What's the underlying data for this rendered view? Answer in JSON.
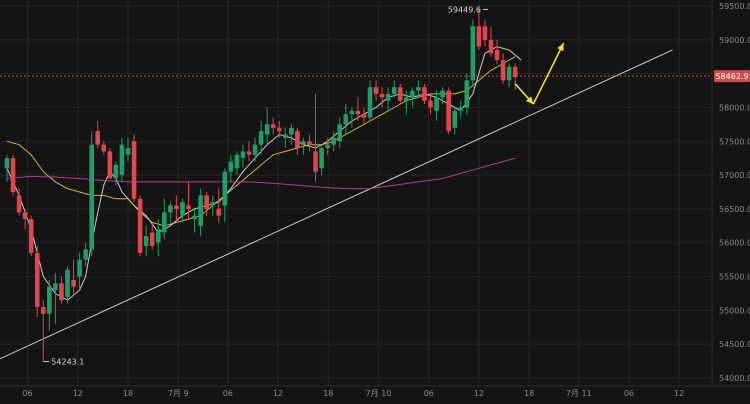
{
  "chart_data": {
    "type": "candlestick",
    "title": "",
    "xlabel": "",
    "ylabel": "",
    "ylim": [
      54000,
      59500
    ],
    "y_ticks": [
      54000.0,
      54500.0,
      55000.0,
      55500.0,
      56000.0,
      56500.0,
      57000.0,
      57500.0,
      58000.0,
      58500.0,
      59000.0,
      59500.0
    ],
    "y_tick_labels": [
      "54000.0",
      "54500.0",
      "55000.0",
      "55500.0",
      "56000.0",
      "56500.0",
      "57000.0",
      "57500.0",
      "58000.0",
      "58500.0",
      "59000.0",
      "59500.0"
    ],
    "x_tick_labels": [
      {
        "label": "06",
        "bar": 3.4
      },
      {
        "label": "12",
        "bar": 11.7
      },
      {
        "label": "18",
        "bar": 20.0
      },
      {
        "label": "7月 9",
        "bar": 28.3
      },
      {
        "label": "06",
        "bar": 36.5
      },
      {
        "label": "12",
        "bar": 44.8
      },
      {
        "label": "18",
        "bar": 53.1
      },
      {
        "label": "7月 10",
        "bar": 61.4
      },
      {
        "label": "06",
        "bar": 69.7
      },
      {
        "label": "12",
        "bar": 78.0
      },
      {
        "label": "18",
        "bar": 86.3
      },
      {
        "label": "7月 11",
        "bar": 94.5
      },
      {
        "label": "06",
        "bar": 102.8
      },
      {
        "label": "12",
        "bar": 111.1
      }
    ],
    "candles": [
      [
        57100,
        57300,
        56900,
        57250
      ],
      [
        57250,
        57300,
        56700,
        56750
      ],
      [
        56700,
        56800,
        56400,
        56450
      ],
      [
        56450,
        56500,
        56200,
        56350
      ],
      [
        56350,
        56400,
        55800,
        55850
      ],
      [
        55850,
        55950,
        54900,
        55050
      ],
      [
        55050,
        55150,
        54243.1,
        54950
      ],
      [
        54950,
        55450,
        54700,
        55350
      ],
      [
        55300,
        55550,
        54800,
        55400
      ],
      [
        55400,
        55500,
        55100,
        55150
      ],
      [
        55200,
        55650,
        55100,
        55600
      ],
      [
        55450,
        55750,
        55250,
        55350
      ],
      [
        55500,
        55850,
        55300,
        55750
      ],
      [
        55750,
        56000,
        55650,
        55900
      ],
      [
        55900,
        57650,
        55800,
        57450
      ],
      [
        57650,
        57800,
        57400,
        57450
      ],
      [
        57450,
        57500,
        57300,
        57350
      ],
      [
        57350,
        57400,
        56950,
        56950
      ],
      [
        56950,
        57200,
        56850,
        57150
      ],
      [
        57000,
        57550,
        56900,
        57450
      ],
      [
        57300,
        57550,
        57200,
        57400
      ],
      [
        57500,
        57600,
        56600,
        56650
      ],
      [
        56650,
        56700,
        55800,
        55850
      ],
      [
        55950,
        56250,
        55800,
        56100
      ],
      [
        56150,
        56300,
        55900,
        55950
      ],
      [
        56000,
        56350,
        55800,
        56200
      ],
      [
        56150,
        56650,
        56050,
        56450
      ],
      [
        56450,
        56600,
        56300,
        56550
      ],
      [
        56550,
        56700,
        56300,
        56500
      ],
      [
        56400,
        56650,
        56300,
        56600
      ],
      [
        56550,
        56900,
        56350,
        56500
      ],
      [
        56350,
        56500,
        56150,
        56400
      ],
      [
        56250,
        56800,
        56100,
        56700
      ],
      [
        56700,
        56750,
        56400,
        56500
      ],
      [
        56550,
        56700,
        56400,
        56600
      ],
      [
        56500,
        56800,
        56300,
        56400
      ],
      [
        56550,
        57100,
        56300,
        57050
      ],
      [
        57050,
        57300,
        56900,
        57200
      ],
      [
        57100,
        57350,
        57000,
        57300
      ],
      [
        57250,
        57450,
        57100,
        57350
      ],
      [
        57350,
        57500,
        57200,
        57300
      ],
      [
        57300,
        57550,
        57200,
        57450
      ],
      [
        57450,
        57800,
        57300,
        57650
      ],
      [
        57600,
        58000,
        57450,
        57750
      ],
      [
        57750,
        57850,
        57600,
        57700
      ],
      [
        57700,
        57800,
        57550,
        57650
      ],
      [
        57550,
        57700,
        57400,
        57600
      ],
      [
        57600,
        57750,
        57450,
        57700
      ],
      [
        57650,
        57700,
        57300,
        57400
      ],
      [
        57450,
        57550,
        57300,
        57500
      ],
      [
        57500,
        57600,
        57350,
        57450
      ],
      [
        57350,
        58200,
        56900,
        57050
      ],
      [
        57100,
        57450,
        57000,
        57400
      ],
      [
        57400,
        57550,
        57300,
        57450
      ],
      [
        57450,
        57650,
        57350,
        57550
      ],
      [
        57500,
        57850,
        57400,
        57750
      ],
      [
        57750,
        58050,
        57600,
        57900
      ],
      [
        57900,
        58000,
        57700,
        57950
      ],
      [
        57950,
        58150,
        57800,
        57900
      ],
      [
        57900,
        58000,
        57750,
        57850
      ],
      [
        57850,
        58400,
        57800,
        58300
      ],
      [
        58300,
        58400,
        58100,
        58200
      ],
      [
        58200,
        58300,
        58000,
        58150
      ],
      [
        58100,
        58300,
        57950,
        58200
      ],
      [
        58200,
        58400,
        58150,
        58300
      ],
      [
        58300,
        58350,
        58050,
        58100
      ],
      [
        58100,
        58250,
        57900,
        58150
      ],
      [
        58150,
        58300,
        58000,
        58250
      ],
      [
        58250,
        58400,
        58150,
        58300
      ],
      [
        58300,
        58350,
        58050,
        58100
      ],
      [
        58100,
        58200,
        57900,
        58000
      ],
      [
        57950,
        58250,
        57800,
        58150
      ],
      [
        58150,
        58300,
        58050,
        58250
      ],
      [
        58250,
        58300,
        57600,
        57650
      ],
      [
        57700,
        58000,
        57600,
        57950
      ],
      [
        57950,
        58100,
        57850,
        58000
      ],
      [
        58000,
        58500,
        57900,
        58400
      ],
      [
        58400,
        59300,
        58300,
        59200
      ],
      [
        59200,
        59449.6,
        58850,
        58900
      ],
      [
        59200,
        59300,
        58900,
        59000
      ],
      [
        59000,
        59200,
        58750,
        58800
      ],
      [
        58850,
        59000,
        58650,
        58700
      ],
      [
        58700,
        58800,
        58350,
        58400
      ],
      [
        58400,
        58650,
        58300,
        58600
      ],
      [
        58600,
        58650,
        58250,
        58450
      ]
    ],
    "series": [
      {
        "name": "",
        "color": "#e0e0e0",
        "points": [
          [
            0,
            57100
          ],
          [
            2,
            56700
          ],
          [
            4,
            56200
          ],
          [
            6,
            55500
          ],
          [
            8,
            55250
          ],
          [
            10,
            55150
          ],
          [
            12,
            55300
          ],
          [
            13,
            55500
          ],
          [
            14,
            56000
          ],
          [
            15,
            56450
          ],
          [
            16,
            56850
          ],
          [
            17,
            57050
          ],
          [
            18,
            56950
          ],
          [
            19,
            56750
          ],
          [
            21,
            56550
          ],
          [
            23,
            56400
          ],
          [
            25,
            56150
          ],
          [
            27,
            56250
          ],
          [
            29,
            56400
          ],
          [
            31,
            56500
          ],
          [
            33,
            56550
          ],
          [
            35,
            56600
          ],
          [
            37,
            56800
          ],
          [
            39,
            57050
          ],
          [
            41,
            57250
          ],
          [
            43,
            57450
          ],
          [
            45,
            57600
          ],
          [
            47,
            57550
          ],
          [
            49,
            57450
          ],
          [
            51,
            57400
          ],
          [
            53,
            57500
          ],
          [
            55,
            57650
          ],
          [
            57,
            57800
          ],
          [
            59,
            57900
          ],
          [
            61,
            58000
          ],
          [
            63,
            58150
          ],
          [
            65,
            58200
          ],
          [
            67,
            58150
          ],
          [
            69,
            58200
          ],
          [
            71,
            58150
          ],
          [
            73,
            58050
          ],
          [
            75,
            57950
          ],
          [
            77,
            58200
          ],
          [
            79,
            58800
          ],
          [
            81,
            58900
          ],
          [
            83,
            58850
          ],
          [
            85,
            58700
          ]
        ]
      },
      {
        "name": "",
        "color": "#e3c93a",
        "points": [
          [
            0,
            57500
          ],
          [
            2,
            57450
          ],
          [
            4,
            57300
          ],
          [
            6,
            57050
          ],
          [
            8,
            56900
          ],
          [
            10,
            56800
          ],
          [
            12,
            56750
          ],
          [
            14,
            56700
          ],
          [
            16,
            56700
          ],
          [
            18,
            56650
          ],
          [
            20,
            56650
          ],
          [
            22,
            56450
          ],
          [
            24,
            56300
          ],
          [
            26,
            56250
          ],
          [
            28,
            56300
          ],
          [
            30,
            56350
          ],
          [
            32,
            56400
          ],
          [
            34,
            56550
          ],
          [
            36,
            56700
          ],
          [
            38,
            56850
          ],
          [
            40,
            57000
          ],
          [
            42,
            57150
          ],
          [
            44,
            57300
          ],
          [
            46,
            57350
          ],
          [
            48,
            57400
          ],
          [
            50,
            57450
          ],
          [
            52,
            57450
          ],
          [
            54,
            57500
          ],
          [
            56,
            57600
          ],
          [
            58,
            57700
          ],
          [
            60,
            57800
          ],
          [
            62,
            57900
          ],
          [
            64,
            58000
          ],
          [
            66,
            58100
          ],
          [
            68,
            58150
          ],
          [
            70,
            58200
          ],
          [
            72,
            58200
          ],
          [
            74,
            58200
          ],
          [
            76,
            58250
          ],
          [
            78,
            58400
          ],
          [
            80,
            58550
          ],
          [
            82,
            58650
          ],
          [
            84,
            58750
          ]
        ]
      },
      {
        "name": "",
        "color": "#c040a8",
        "points": [
          [
            0,
            56950
          ],
          [
            4,
            56980
          ],
          [
            8,
            56970
          ],
          [
            12,
            56950
          ],
          [
            16,
            56920
          ],
          [
            20,
            56900
          ],
          [
            24,
            56900
          ],
          [
            28,
            56900
          ],
          [
            32,
            56900
          ],
          [
            36,
            56900
          ],
          [
            40,
            56900
          ],
          [
            44,
            56880
          ],
          [
            48,
            56850
          ],
          [
            52,
            56820
          ],
          [
            56,
            56800
          ],
          [
            60,
            56800
          ],
          [
            64,
            56850
          ],
          [
            68,
            56900
          ],
          [
            72,
            56950
          ],
          [
            76,
            57050
          ],
          [
            80,
            57150
          ],
          [
            84,
            57250
          ]
        ]
      }
    ],
    "support_line": [
      [
        -2,
        54250
      ],
      [
        110,
        58850
      ]
    ],
    "arrows": [
      {
        "from": [
          84,
          58350
        ],
        "to": [
          87,
          58050
        ]
      },
      {
        "from": [
          87,
          58050
        ],
        "to": [
          92,
          58950
        ]
      }
    ],
    "horizontal_line": 58462.9,
    "current_price_label": "58462.9",
    "annotations": [
      {
        "text": "59449.6",
        "bar": 79,
        "value": 59449.6
      },
      {
        "text": "54243.1",
        "bar": 6,
        "value": 54243.1
      }
    ]
  }
}
